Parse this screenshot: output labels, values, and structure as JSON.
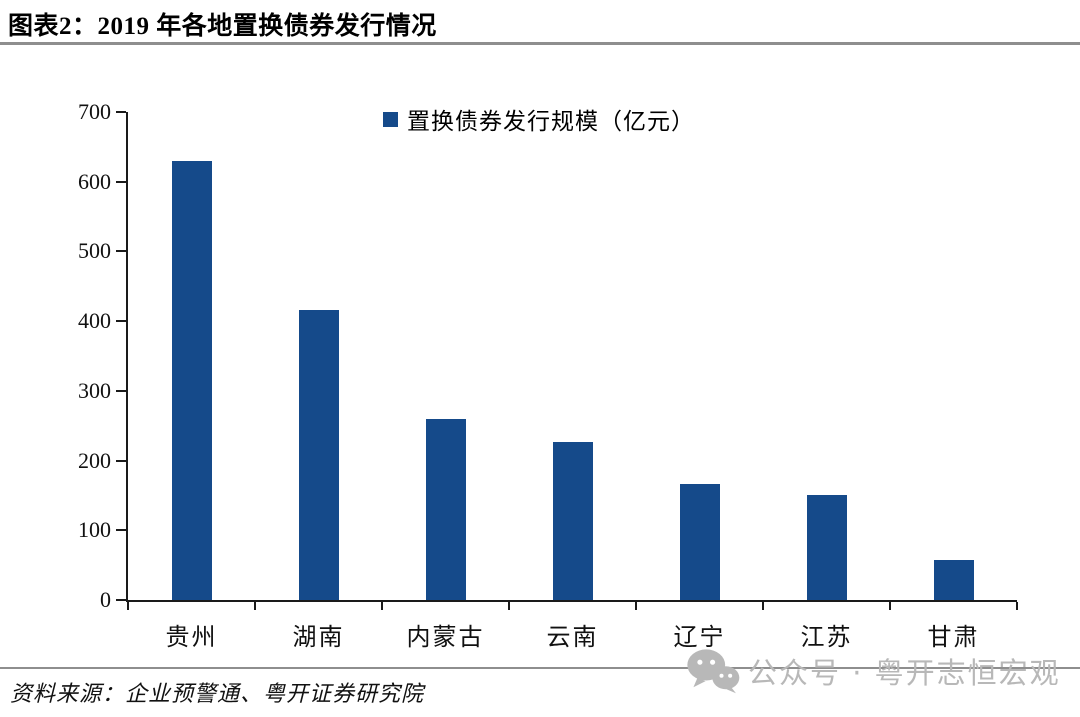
{
  "header": {
    "title": "图表2：2019 年各地置换债券发行情况"
  },
  "legend": {
    "label": "置换债券发行规模（亿元）"
  },
  "chart_data": {
    "type": "bar",
    "title": "2019 年各地置换债券发行情况",
    "series_name": "置换债券发行规模（亿元）",
    "categories": [
      "贵州",
      "湖南",
      "内蒙古",
      "云南",
      "辽宁",
      "江苏",
      "甘肃"
    ],
    "values": [
      630,
      416,
      260,
      227,
      167,
      150,
      58
    ],
    "xlabel": "",
    "ylabel": "",
    "ylim": [
      0,
      700
    ],
    "ytick_step": 100,
    "grid": false,
    "legend_position": "top-center",
    "bar_color": "#154a8a",
    "axis_color": "#1a1a1a"
  },
  "footer": {
    "source": "资料来源：企业预警通、粤开证券研究院"
  },
  "watermark": {
    "icon": "wechat-icon",
    "text": "公众号 · 粤开志恒宏观"
  }
}
